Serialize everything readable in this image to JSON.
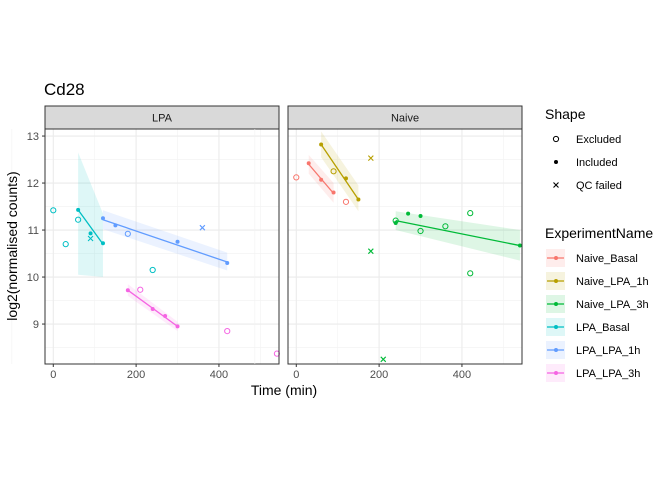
{
  "chart_data": {
    "type": "scatter",
    "title": "Cd28",
    "xlabel": "Time (min)",
    "ylabel": "log2(normalised counts)",
    "xlim": [
      -20,
      545
    ],
    "ylim": [
      8.15,
      13.15
    ],
    "x_ticks": [
      0,
      200,
      400
    ],
    "y_ticks": [
      9,
      10,
      11,
      12,
      13
    ],
    "grid": true,
    "legend_position": "right",
    "facets": [
      "LPA",
      "Naive"
    ],
    "shape_legend": {
      "title": "Shape",
      "entries": [
        {
          "label": "Excluded",
          "shape": "open-circle"
        },
        {
          "label": "Included",
          "shape": "filled-circle"
        },
        {
          "label": "QC failed",
          "shape": "cross"
        }
      ]
    },
    "color_legend": {
      "title": "ExperimentName",
      "entries": [
        {
          "label": "Naive_Basal",
          "color": "#F8766D"
        },
        {
          "label": "Naive_LPA_1h",
          "color": "#B79F00"
        },
        {
          "label": "Naive_LPA_3h",
          "color": "#00BA38"
        },
        {
          "label": "LPA_Basal",
          "color": "#00BFC4"
        },
        {
          "label": "LPA_LPA_1h",
          "color": "#619CFF"
        },
        {
          "label": "LPA_LPA_3h",
          "color": "#F564E3"
        }
      ]
    },
    "series": [
      {
        "name": "LPA_Basal",
        "facet": "LPA",
        "color": "#00BFC4",
        "points": [
          {
            "x": 0,
            "y": 11.42,
            "shape": "open-circle"
          },
          {
            "x": 30,
            "y": 10.7,
            "shape": "open-circle"
          },
          {
            "x": 60,
            "y": 11.22,
            "shape": "open-circle"
          },
          {
            "x": 60,
            "y": 11.43,
            "shape": "filled-circle"
          },
          {
            "x": 90,
            "y": 10.93,
            "shape": "filled-circle"
          },
          {
            "x": 120,
            "y": 10.72,
            "shape": "filled-circle"
          },
          {
            "x": 90,
            "y": 10.82,
            "shape": "cross"
          },
          {
            "x": 240,
            "y": 10.15,
            "shape": "open-circle"
          }
        ],
        "fit": {
          "x": [
            60,
            120
          ],
          "y": [
            11.43,
            10.7
          ],
          "band_lower": [
            10.05,
            10.0
          ],
          "band_upper": [
            12.65,
            11.35
          ]
        }
      },
      {
        "name": "LPA_LPA_1h",
        "facet": "LPA",
        "color": "#619CFF",
        "points": [
          {
            "x": 120,
            "y": 11.25,
            "shape": "filled-circle"
          },
          {
            "x": 150,
            "y": 11.1,
            "shape": "filled-circle"
          },
          {
            "x": 180,
            "y": 10.92,
            "shape": "open-circle"
          },
          {
            "x": 300,
            "y": 10.75,
            "shape": "filled-circle"
          },
          {
            "x": 360,
            "y": 11.05,
            "shape": "cross"
          },
          {
            "x": 420,
            "y": 10.3,
            "shape": "filled-circle"
          }
        ],
        "fit": {
          "x": [
            120,
            420
          ],
          "y": [
            11.22,
            10.32
          ],
          "band_lower": [
            11.02,
            10.14
          ],
          "band_upper": [
            11.42,
            10.52
          ]
        }
      },
      {
        "name": "LPA_LPA_3h",
        "facet": "LPA",
        "color": "#F564E3",
        "points": [
          {
            "x": 180,
            "y": 9.72,
            "shape": "filled-circle"
          },
          {
            "x": 210,
            "y": 9.73,
            "shape": "open-circle"
          },
          {
            "x": 240,
            "y": 9.32,
            "shape": "filled-circle"
          },
          {
            "x": 270,
            "y": 9.17,
            "shape": "filled-circle"
          },
          {
            "x": 300,
            "y": 8.95,
            "shape": "filled-circle"
          },
          {
            "x": 420,
            "y": 8.85,
            "shape": "open-circle"
          },
          {
            "x": 540,
            "y": 8.37,
            "shape": "open-circle"
          }
        ],
        "fit": {
          "x": [
            180,
            300
          ],
          "y": [
            9.72,
            8.95
          ],
          "band_lower": [
            9.6,
            8.85
          ],
          "band_upper": [
            9.85,
            9.05
          ]
        }
      },
      {
        "name": "Naive_Basal",
        "facet": "Naive",
        "color": "#F8766D",
        "points": [
          {
            "x": 0,
            "y": 12.12,
            "shape": "open-circle"
          },
          {
            "x": 30,
            "y": 12.42,
            "shape": "filled-circle"
          },
          {
            "x": 60,
            "y": 12.07,
            "shape": "filled-circle"
          },
          {
            "x": 90,
            "y": 11.8,
            "shape": "filled-circle"
          },
          {
            "x": 120,
            "y": 11.6,
            "shape": "open-circle"
          }
        ],
        "fit": {
          "x": [
            30,
            90
          ],
          "y": [
            12.4,
            11.78
          ],
          "band_lower": [
            12.2,
            11.58
          ],
          "band_upper": [
            12.6,
            12.0
          ]
        }
      },
      {
        "name": "Naive_LPA_1h",
        "facet": "Naive",
        "color": "#B79F00",
        "points": [
          {
            "x": 60,
            "y": 12.82,
            "shape": "filled-circle"
          },
          {
            "x": 90,
            "y": 12.25,
            "shape": "open-circle"
          },
          {
            "x": 120,
            "y": 12.1,
            "shape": "filled-circle"
          },
          {
            "x": 150,
            "y": 11.65,
            "shape": "filled-circle"
          },
          {
            "x": 180,
            "y": 12.53,
            "shape": "cross"
          }
        ],
        "fit": {
          "x": [
            60,
            150
          ],
          "y": [
            12.82,
            11.65
          ],
          "band_lower": [
            12.55,
            11.4
          ],
          "band_upper": [
            13.1,
            11.95
          ]
        }
      },
      {
        "name": "Naive_LPA_3h",
        "facet": "Naive",
        "color": "#00BA38",
        "points": [
          {
            "x": 180,
            "y": 10.55,
            "shape": "cross"
          },
          {
            "x": 210,
            "y": 8.25,
            "shape": "cross"
          },
          {
            "x": 240,
            "y": 11.2,
            "shape": "open-circle"
          },
          {
            "x": 240,
            "y": 11.15,
            "shape": "filled-circle"
          },
          {
            "x": 270,
            "y": 11.35,
            "shape": "filled-circle"
          },
          {
            "x": 300,
            "y": 11.3,
            "shape": "filled-circle"
          },
          {
            "x": 300,
            "y": 10.98,
            "shape": "open-circle"
          },
          {
            "x": 360,
            "y": 11.08,
            "shape": "open-circle"
          },
          {
            "x": 420,
            "y": 11.36,
            "shape": "open-circle"
          },
          {
            "x": 420,
            "y": 10.08,
            "shape": "open-circle"
          },
          {
            "x": 540,
            "y": 10.67,
            "shape": "filled-circle"
          }
        ],
        "fit": {
          "x": [
            240,
            540
          ],
          "y": [
            11.2,
            10.67
          ],
          "band_lower": [
            11.0,
            10.35
          ],
          "band_upper": [
            11.4,
            11.0
          ]
        }
      }
    ]
  }
}
